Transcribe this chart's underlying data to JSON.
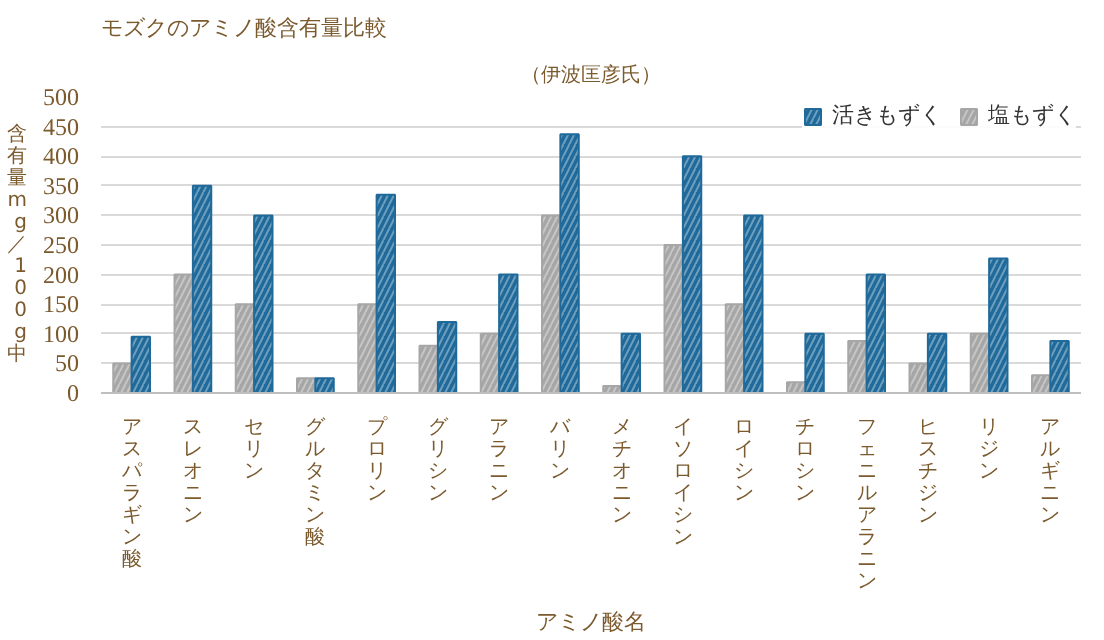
{
  "chart_data": {
    "type": "bar",
    "title": "モズクのアミノ酸含有量比較",
    "annotations": [
      "（伊波匡彦氏）"
    ],
    "xlabel": "アミノ酸名",
    "ylabel": "含有量mg／100g中",
    "categories": [
      "アスパラギン酸",
      "スレオニン",
      "セリン",
      "グルタミン酸",
      "プロリン",
      "グリシン",
      "アラニン",
      "バリン",
      "メチオニン",
      "イソロイシン",
      "ロイシン",
      "チロシン",
      "フェニルアラニン",
      "ヒスチジン",
      "リジン",
      "アルギニン"
    ],
    "series": [
      {
        "name": "塩もずく",
        "color": "#a6a6a6",
        "values": [
          50,
          200,
          150,
          25,
          150,
          80,
          100,
          300,
          12,
          250,
          150,
          18,
          88,
          50,
          100,
          30
        ]
      },
      {
        "name": "活きもずく",
        "color": "#1f6a9a",
        "values": [
          95,
          350,
          300,
          25,
          335,
          120,
          200,
          437,
          100,
          400,
          300,
          100,
          200,
          100,
          227,
          88
        ]
      }
    ],
    "ylim": [
      0,
      500
    ],
    "yticks": [
      0,
      50,
      100,
      150,
      200,
      250,
      300,
      350,
      400,
      450,
      500
    ],
    "grid": "y",
    "legend": "top right"
  }
}
